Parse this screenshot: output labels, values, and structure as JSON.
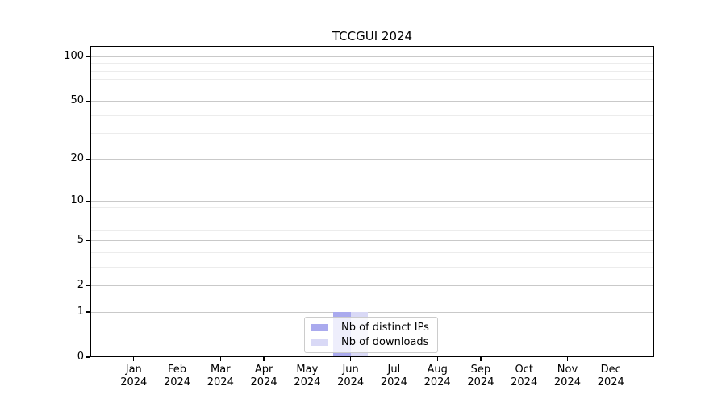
{
  "chart_data": {
    "type": "bar",
    "title": "TCCGUI 2024",
    "categories": [
      "Jan",
      "Feb",
      "Mar",
      "Apr",
      "May",
      "Jun",
      "Jul",
      "Aug",
      "Sep",
      "Oct",
      "Nov",
      "Dec"
    ],
    "category_year": "2024",
    "xlabel": "",
    "ylabel": "",
    "series": [
      {
        "name": "Nb of distinct IPs",
        "color": "#aaaaee",
        "values": [
          0,
          0,
          0,
          0,
          0,
          1,
          0,
          0,
          0,
          0,
          0,
          0
        ]
      },
      {
        "name": "Nb of downloads",
        "color": "#d9d9f6",
        "values": [
          0,
          0,
          0,
          0,
          0,
          1,
          0,
          0,
          0,
          0,
          0,
          0
        ]
      }
    ],
    "y_axis": {
      "scale": "log1p",
      "major_ticks": [
        0,
        1,
        2,
        5,
        10,
        20,
        50,
        100
      ],
      "minor_ticks": [
        3,
        4,
        6,
        7,
        8,
        9,
        30,
        40,
        60,
        70,
        80,
        90
      ],
      "ylim": [
        0,
        118
      ]
    },
    "grid": true,
    "legend_position": "lower-center-inside",
    "colors": {
      "frame": "#000000",
      "grid_major": "#c9c9c9",
      "grid_minor": "#ececec",
      "legend_border": "#cccccc",
      "text": "#000000"
    }
  }
}
